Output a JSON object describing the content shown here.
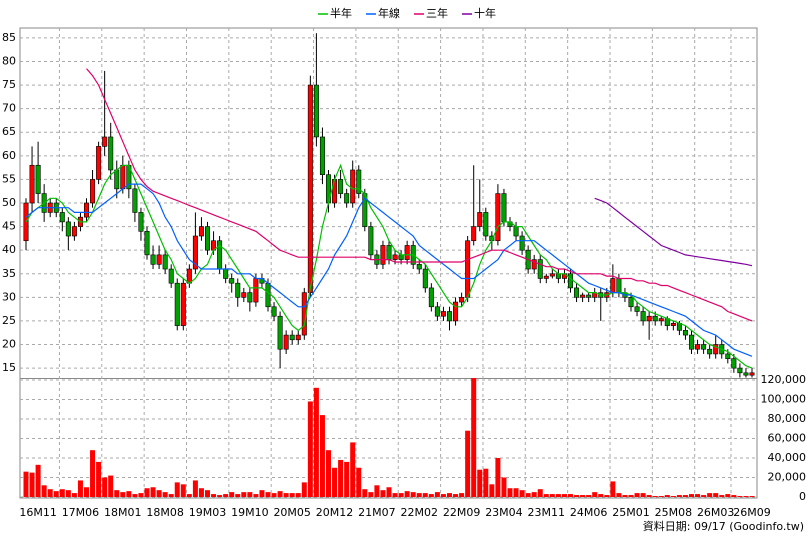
{
  "chart_data": {
    "type": "candlestick",
    "legend": "top",
    "footer": "資料日期: 09/17  (Goodinfo.tw)",
    "up_color": "#ff0000",
    "down_color": "#00a000",
    "ylim": [
      12.9,
      87.1
    ],
    "yticks": [
      15,
      20,
      25,
      30,
      35,
      40,
      45,
      50,
      55,
      60,
      65,
      70,
      75,
      80,
      85
    ],
    "categories": [
      null,
      null,
      "16M11",
      null,
      null,
      null,
      null,
      null,
      null,
      "17M06",
      null,
      null,
      null,
      null,
      null,
      null,
      "18M01",
      null,
      null,
      null,
      null,
      null,
      null,
      "18M08",
      null,
      null,
      null,
      null,
      null,
      null,
      "19M03",
      null,
      null,
      null,
      null,
      null,
      null,
      "19M10",
      null,
      null,
      null,
      null,
      null,
      null,
      "20M05",
      null,
      null,
      null,
      null,
      null,
      null,
      "20M12",
      null,
      null,
      null,
      null,
      null,
      null,
      "21M07",
      null,
      null,
      null,
      null,
      null,
      null,
      "22M02",
      null,
      null,
      null,
      null,
      null,
      null,
      "22M09",
      null,
      null,
      null,
      null,
      null,
      null,
      "23M04",
      null,
      null,
      null,
      null,
      null,
      null,
      "23M11",
      null,
      null,
      null,
      null,
      null,
      null,
      "24M06",
      null,
      null,
      null,
      null,
      null,
      null,
      "25M01",
      null,
      null,
      null,
      null,
      null,
      null,
      "25M08",
      null,
      null,
      null,
      null,
      null,
      null,
      "26M03",
      null,
      null,
      null,
      null,
      null,
      "26M09"
    ],
    "candles": [
      [
        42,
        51,
        40,
        50
      ],
      [
        50,
        62,
        48,
        58
      ],
      [
        58,
        63,
        50,
        52
      ],
      [
        52,
        54,
        46,
        48
      ],
      [
        48,
        51,
        47,
        50
      ],
      [
        50,
        51,
        47,
        48
      ],
      [
        48,
        49,
        44,
        46
      ],
      [
        46,
        47,
        40,
        43
      ],
      [
        43,
        46,
        42,
        45
      ],
      [
        45,
        48,
        44,
        47
      ],
      [
        47,
        51,
        46,
        50
      ],
      [
        50,
        57,
        49,
        55
      ],
      [
        55,
        63,
        54,
        62
      ],
      [
        62,
        78,
        60,
        64
      ],
      [
        64,
        67,
        55,
        57
      ],
      [
        57,
        59,
        51,
        53
      ],
      [
        53,
        60,
        52,
        58
      ],
      [
        58,
        59,
        51,
        53
      ],
      [
        53,
        54,
        46,
        48
      ],
      [
        48,
        49,
        42,
        44
      ],
      [
        44,
        45,
        38,
        39
      ],
      [
        39,
        41,
        36,
        37
      ],
      [
        37,
        41,
        36,
        39
      ],
      [
        39,
        40,
        35,
        36
      ],
      [
        36,
        37,
        32,
        33
      ],
      [
        33,
        34,
        23,
        24
      ],
      [
        24,
        34,
        23,
        33
      ],
      [
        33,
        37,
        32,
        36
      ],
      [
        36,
        48,
        35,
        43
      ],
      [
        43,
        47,
        42,
        45
      ],
      [
        45,
        46,
        39,
        40
      ],
      [
        40,
        44,
        39,
        42
      ],
      [
        42,
        43,
        35,
        36
      ],
      [
        36,
        37,
        33,
        34
      ],
      [
        34,
        35,
        31,
        33
      ],
      [
        33,
        34,
        28,
        30
      ],
      [
        30,
        32,
        29,
        31
      ],
      [
        31,
        32,
        27,
        29
      ],
      [
        29,
        35,
        28,
        34
      ],
      [
        34,
        35,
        32,
        33
      ],
      [
        33,
        34,
        27,
        28
      ],
      [
        28,
        29,
        25,
        26
      ],
      [
        26,
        27,
        15,
        19
      ],
      [
        19,
        23,
        18,
        22
      ],
      [
        22,
        23,
        20,
        21
      ],
      [
        21,
        23,
        20,
        22
      ],
      [
        22,
        32,
        21,
        31
      ],
      [
        31,
        77,
        30,
        75
      ],
      [
        75,
        86,
        62,
        64
      ],
      [
        64,
        66,
        54,
        56
      ],
      [
        56,
        57,
        48,
        50
      ],
      [
        50,
        56,
        49,
        55
      ],
      [
        55,
        57,
        51,
        52
      ],
      [
        52,
        53,
        49,
        50
      ],
      [
        50,
        59,
        49,
        57
      ],
      [
        57,
        58,
        51,
        52
      ],
      [
        52,
        53,
        44,
        45
      ],
      [
        45,
        46,
        38,
        39
      ],
      [
        39,
        40,
        36,
        37
      ],
      [
        37,
        42,
        36,
        41
      ],
      [
        41,
        42,
        37,
        38
      ],
      [
        38,
        40,
        37,
        39
      ],
      [
        39,
        40,
        37,
        38
      ],
      [
        38,
        42,
        37,
        41
      ],
      [
        41,
        42,
        36,
        37
      ],
      [
        37,
        38,
        35,
        36
      ],
      [
        36,
        37,
        31,
        32
      ],
      [
        32,
        33,
        27,
        28
      ],
      [
        28,
        29,
        25,
        26
      ],
      [
        26,
        28,
        25,
        27
      ],
      [
        27,
        28,
        23,
        25
      ],
      [
        25,
        30,
        24,
        29
      ],
      [
        29,
        31,
        28,
        30
      ],
      [
        30,
        43,
        29,
        42
      ],
      [
        42,
        58,
        41,
        45
      ],
      [
        45,
        55,
        44,
        48
      ],
      [
        48,
        49,
        42,
        43
      ],
      [
        43,
        44,
        40,
        42
      ],
      [
        42,
        54,
        41,
        52
      ],
      [
        52,
        53,
        45,
        46
      ],
      [
        46,
        47,
        44,
        45
      ],
      [
        45,
        46,
        42,
        43
      ],
      [
        43,
        44,
        39,
        40
      ],
      [
        40,
        41,
        35,
        36
      ],
      [
        36,
        39,
        35,
        38
      ],
      [
        38,
        39,
        33,
        34
      ],
      [
        34,
        35,
        33,
        34.5
      ],
      [
        34.5,
        36,
        34,
        35
      ],
      [
        35,
        36,
        33,
        34
      ],
      [
        34,
        36,
        33,
        35
      ],
      [
        35,
        36,
        31,
        32
      ],
      [
        32,
        33,
        29,
        30
      ],
      [
        30,
        31,
        29,
        30.5
      ],
      [
        30.5,
        31,
        29,
        30
      ],
      [
        30,
        32,
        29,
        31
      ],
      [
        31,
        32,
        25,
        30
      ],
      [
        30,
        32,
        29,
        31
      ],
      [
        31,
        37,
        30,
        34
      ],
      [
        34,
        35,
        30,
        31
      ],
      [
        31,
        32,
        29,
        30
      ],
      [
        30,
        31,
        27,
        28
      ],
      [
        28,
        29,
        26,
        27
      ],
      [
        27,
        28,
        24,
        25
      ],
      [
        25,
        27,
        21,
        26
      ],
      [
        26,
        27,
        24,
        25
      ],
      [
        25,
        26,
        24,
        25.5
      ],
      [
        25.5,
        26,
        23,
        24
      ],
      [
        24,
        25,
        23,
        24.5
      ],
      [
        24.5,
        25,
        22,
        23
      ],
      [
        23,
        24,
        21,
        22
      ],
      [
        22,
        23,
        18,
        19
      ],
      [
        19,
        21,
        18,
        20
      ],
      [
        20,
        21,
        18,
        19
      ],
      [
        19,
        20,
        17,
        18
      ],
      [
        18,
        22,
        17,
        20
      ],
      [
        20,
        21,
        17,
        18
      ],
      [
        18,
        19,
        16,
        17
      ],
      [
        17,
        18,
        14,
        15
      ],
      [
        15,
        16,
        13,
        14
      ],
      [
        14,
        15,
        13,
        13.5
      ],
      [
        13.5,
        15,
        13,
        14
      ]
    ],
    "series": [
      {
        "name": "半年",
        "color": "#00c000",
        "values": [
          46,
          48,
          49,
          50,
          51,
          51,
          50,
          48,
          47,
          46,
          46,
          48,
          51,
          54,
          56,
          57,
          58,
          58,
          55,
          52,
          49,
          46,
          43,
          40,
          38,
          35,
          34,
          33,
          34,
          36,
          37,
          40,
          41,
          40,
          38,
          36,
          34,
          32,
          32,
          32,
          31,
          30,
          28,
          26,
          24,
          23,
          24,
          32,
          38,
          45,
          50,
          55,
          58,
          54,
          53,
          53,
          52,
          49,
          47,
          45,
          42,
          40,
          39,
          39,
          39,
          38,
          37,
          35,
          33,
          31,
          29,
          28,
          28,
          30,
          33,
          37,
          40,
          42,
          45,
          46,
          46,
          45,
          45,
          43,
          41,
          39,
          38,
          36,
          35,
          35,
          34,
          33,
          32,
          31,
          31,
          30.5,
          30.5,
          31,
          31,
          31,
          30.5,
          29,
          28,
          27,
          26.5,
          26,
          25.5,
          25,
          24.5,
          24,
          23,
          22,
          21,
          20,
          19.5,
          19,
          18.5,
          17.5,
          16.5,
          15.5,
          15
        ]
      },
      {
        "name": "年線",
        "color": "#0060ff",
        "values": [
          47,
          48,
          49,
          49,
          49,
          49,
          49,
          49,
          48,
          48,
          48,
          48,
          49,
          50,
          51,
          52,
          53,
          54,
          54,
          54,
          53,
          52,
          50,
          47,
          45,
          42,
          40,
          38,
          37,
          36,
          36,
          36,
          36,
          36,
          36,
          35,
          35,
          35,
          34,
          34,
          33,
          32,
          31,
          30,
          29,
          28,
          28,
          30,
          32,
          34,
          36,
          39,
          41,
          43,
          46,
          49,
          51,
          50,
          49,
          48,
          47,
          46,
          45,
          44,
          43,
          41,
          40,
          39,
          38,
          37,
          36,
          35,
          34,
          34,
          34,
          35,
          36,
          37,
          38,
          40,
          41,
          42,
          42,
          42,
          42,
          41,
          40,
          39,
          38,
          37,
          36,
          35,
          34,
          33,
          32.5,
          32,
          31.5,
          31,
          31,
          30.5,
          30.5,
          30,
          29.5,
          29,
          28.5,
          28,
          27.5,
          27,
          26.5,
          26,
          25,
          24,
          23,
          22.5,
          22,
          21,
          20,
          19,
          18.5,
          18,
          17.5
        ]
      },
      {
        "name": "三年",
        "color": "#e0006a",
        "values": [
          null,
          null,
          null,
          null,
          null,
          null,
          null,
          null,
          null,
          null,
          78.5,
          77,
          75,
          72,
          69,
          66,
          63,
          60,
          57,
          55,
          53.5,
          52.5,
          52,
          51.5,
          51,
          50.5,
          50,
          49.5,
          49,
          48.5,
          48,
          47.5,
          47,
          46.5,
          46,
          45.5,
          45,
          44.5,
          44,
          43,
          42,
          41,
          40,
          39.5,
          39,
          38.5,
          38.5,
          38.5,
          38.5,
          38.5,
          38.5,
          38.5,
          38.5,
          38.5,
          38.5,
          38.5,
          38.5,
          38,
          38,
          38,
          38,
          37.5,
          37.5,
          37.5,
          37.5,
          37.5,
          37.5,
          37.5,
          37.5,
          37.5,
          37.5,
          37.5,
          37.5,
          38,
          38.5,
          39,
          39.5,
          40,
          40,
          40,
          39.5,
          39,
          38.5,
          38,
          37.5,
          37,
          36.5,
          36.5,
          36,
          36,
          35.5,
          35,
          35,
          35,
          35,
          35,
          34.5,
          34.5,
          34,
          34,
          34,
          33.5,
          33.5,
          33,
          33,
          32.5,
          32.5,
          32,
          31.5,
          31,
          30.5,
          30,
          29.5,
          29,
          28.5,
          28,
          27,
          26.5,
          26,
          25.5,
          25
        ]
      },
      {
        "name": "十年",
        "color": "#8000a0",
        "values": [
          null,
          null,
          null,
          null,
          null,
          null,
          null,
          null,
          null,
          null,
          null,
          null,
          null,
          null,
          null,
          null,
          null,
          null,
          null,
          null,
          null,
          null,
          null,
          null,
          null,
          null,
          null,
          null,
          null,
          null,
          null,
          null,
          null,
          null,
          null,
          null,
          null,
          null,
          null,
          null,
          null,
          null,
          null,
          null,
          null,
          null,
          null,
          null,
          null,
          null,
          null,
          null,
          null,
          null,
          null,
          null,
          null,
          null,
          null,
          null,
          null,
          null,
          null,
          null,
          null,
          null,
          null,
          null,
          null,
          null,
          null,
          null,
          null,
          null,
          null,
          null,
          null,
          null,
          null,
          null,
          null,
          null,
          null,
          null,
          null,
          null,
          null,
          null,
          null,
          null,
          null,
          null,
          null,
          null,
          51,
          50.5,
          50,
          49,
          48,
          47,
          46,
          45,
          44,
          43,
          42,
          41,
          40.5,
          40,
          39.5,
          39,
          38.8,
          38.6,
          38.4,
          38.2,
          38,
          37.8,
          37.6,
          37.4,
          37.2,
          37,
          36.7
        ]
      }
    ],
    "volume": {
      "color": "#ff0000",
      "ylim": [
        0,
        120000
      ],
      "yticks": [
        0,
        {
          "value": 20000,
          "label": "20,000"
        },
        {
          "value": 40000,
          "label": "40,000"
        },
        {
          "value": 60000,
          "label": "60,000"
        },
        {
          "value": 80000,
          "label": "80,000"
        },
        {
          "value": 100000,
          "label": "100,000"
        },
        {
          "value": 120000,
          "label": "120,000"
        }
      ],
      "values": [
        26000,
        25000,
        33000,
        12000,
        8000,
        6000,
        8000,
        7000,
        4000,
        17000,
        10000,
        48000,
        36000,
        20000,
        22000,
        7000,
        5000,
        6000,
        3000,
        4000,
        9000,
        10000,
        7000,
        5000,
        3000,
        15000,
        13000,
        3000,
        17000,
        9000,
        7000,
        3000,
        2000,
        3000,
        5000,
        3000,
        5000,
        5000,
        3000,
        7000,
        5000,
        4000,
        6000,
        4000,
        4000,
        4000,
        15000,
        98000,
        112000,
        84000,
        48000,
        30000,
        38000,
        36000,
        56000,
        30000,
        8000,
        5000,
        12000,
        7000,
        10000,
        4000,
        4000,
        6000,
        5000,
        4000,
        4000,
        3000,
        5000,
        3000,
        4000,
        3000,
        4000,
        68000,
        122000,
        28000,
        29000,
        13000,
        40000,
        20000,
        9000,
        9000,
        7000,
        4000,
        5000,
        8000,
        3000,
        3000,
        3000,
        3000,
        3000,
        2000,
        2000,
        2000,
        5000,
        3000,
        2000,
        16000,
        4000,
        2000,
        2000,
        4000,
        4000,
        2000,
        1000,
        1000,
        2000,
        1000,
        2000,
        2000,
        3000,
        3000,
        2000,
        4000,
        4000,
        2000,
        3000,
        2000,
        1000,
        1000,
        1000
      ]
    }
  }
}
